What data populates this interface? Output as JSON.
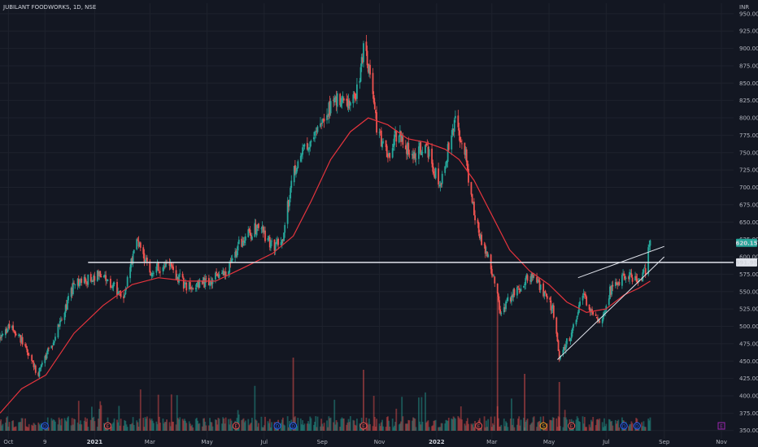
{
  "header": {
    "title": "JUBILANT FOODWORKS, 1D, NSE",
    "currency": "INR"
  },
  "colors": {
    "background": "#131722",
    "grid": "#1e222d",
    "up": "#26a69a",
    "down": "#ef5350",
    "ma": "#e5343d",
    "trendline": "#e0e3eb",
    "axis_text": "#b2b5be",
    "price_label_bg": "#26a69a",
    "level_label_bg": "#e0e3eb",
    "upper_band": "#434651"
  },
  "badges": {
    "earnings_label": "E",
    "split_label": "S",
    "dividend_label": "D",
    "earnings_color": "#ef5350",
    "split_color": "#f7a21b",
    "dividend_color": "#2962ff",
    "future_color": "#9c27b0"
  },
  "chart_data": {
    "type": "candlestick",
    "title": "JUBILANT FOODWORKS, 1D, NSE",
    "y_axis": {
      "unit": "INR",
      "range": [
        338,
        965
      ],
      "ticks": [
        "950.00",
        "925.00",
        "900.00",
        "875.00",
        "850.00",
        "825.00",
        "800.00",
        "775.00",
        "750.00",
        "725.00",
        "700.00",
        "675.00",
        "650.00",
        "625.00",
        "600.00",
        "575.00",
        "550.00",
        "525.00",
        "500.00",
        "475.00",
        "450.00",
        "425.00",
        "400.00",
        "375.00",
        "350.00"
      ]
    },
    "x_axis": {
      "range": [
        "2020-09-22",
        "2022-11-14"
      ],
      "ticks": [
        {
          "label": "Oct",
          "date": "2020-10-01",
          "bold": false
        },
        {
          "label": "9",
          "date": "2020-11-09",
          "bold": false
        },
        {
          "label": "2021",
          "date": "2021-01-01",
          "bold": true
        },
        {
          "label": "Mar",
          "date": "2021-03-01",
          "bold": false
        },
        {
          "label": "May",
          "date": "2021-05-01",
          "bold": false
        },
        {
          "label": "Jul",
          "date": "2021-07-01",
          "bold": false
        },
        {
          "label": "Sep",
          "date": "2021-09-01",
          "bold": false
        },
        {
          "label": "Nov",
          "date": "2021-11-01",
          "bold": false
        },
        {
          "label": "2022",
          "date": "2022-01-01",
          "bold": true
        },
        {
          "label": "Mar",
          "date": "2022-03-01",
          "bold": false
        },
        {
          "label": "May",
          "date": "2022-05-01",
          "bold": false
        },
        {
          "label": "Jul",
          "date": "2022-07-01",
          "bold": false
        },
        {
          "label": "Sep",
          "date": "2022-09-01",
          "bold": false
        },
        {
          "label": "Nov",
          "date": "2022-11-01",
          "bold": false
        }
      ]
    },
    "price_anchors": [
      [
        "2020-09-22",
        480
      ],
      [
        "2020-10-01",
        500
      ],
      [
        "2020-10-15",
        480
      ],
      [
        "2020-11-01",
        430
      ],
      [
        "2020-11-15",
        470
      ],
      [
        "2020-12-10",
        560
      ],
      [
        "2021-01-05",
        575
      ],
      [
        "2021-02-01",
        545
      ],
      [
        "2021-02-15",
        625
      ],
      [
        "2021-03-01",
        580
      ],
      [
        "2021-03-20",
        590
      ],
      [
        "2021-04-10",
        555
      ],
      [
        "2021-05-01",
        565
      ],
      [
        "2021-05-20",
        575
      ],
      [
        "2021-06-05",
        620
      ],
      [
        "2021-06-25",
        645
      ],
      [
        "2021-07-10",
        615
      ],
      [
        "2021-07-20",
        620
      ],
      [
        "2021-08-01",
        725
      ],
      [
        "2021-08-15",
        760
      ],
      [
        "2021-09-01",
        800
      ],
      [
        "2021-09-15",
        825
      ],
      [
        "2021-10-01",
        820
      ],
      [
        "2021-10-11",
        850
      ],
      [
        "2021-10-15",
        905
      ],
      [
        "2021-10-22",
        860
      ],
      [
        "2021-10-29",
        785
      ],
      [
        "2021-11-10",
        740
      ],
      [
        "2021-11-20",
        780
      ],
      [
        "2021-12-05",
        745
      ],
      [
        "2021-12-20",
        760
      ],
      [
        "2022-01-05",
        700
      ],
      [
        "2022-01-14",
        760
      ],
      [
        "2022-01-20",
        800
      ],
      [
        "2022-02-01",
        745
      ],
      [
        "2022-02-10",
        660
      ],
      [
        "2022-02-20",
        615
      ],
      [
        "2022-03-01",
        580
      ],
      [
        "2022-03-10",
        520
      ],
      [
        "2022-03-20",
        540
      ],
      [
        "2022-04-05",
        565
      ],
      [
        "2022-04-15",
        575
      ],
      [
        "2022-04-25",
        545
      ],
      [
        "2022-05-05",
        525
      ],
      [
        "2022-05-12",
        455
      ],
      [
        "2022-05-25",
        490
      ],
      [
        "2022-06-05",
        545
      ],
      [
        "2022-06-15",
        525
      ],
      [
        "2022-06-25",
        505
      ],
      [
        "2022-07-05",
        550
      ],
      [
        "2022-07-15",
        565
      ],
      [
        "2022-07-25",
        575
      ],
      [
        "2022-08-05",
        565
      ],
      [
        "2022-08-12",
        580
      ],
      [
        "2022-08-17",
        625
      ]
    ],
    "moving_average": {
      "points": [
        [
          "2020-09-22",
          375
        ],
        [
          "2020-10-15",
          410
        ],
        [
          "2020-11-10",
          430
        ],
        [
          "2020-12-10",
          490
        ],
        [
          "2021-01-10",
          530
        ],
        [
          "2021-02-10",
          560
        ],
        [
          "2021-03-10",
          570
        ],
        [
          "2021-04-10",
          565
        ],
        [
          "2021-05-10",
          565
        ],
        [
          "2021-06-10",
          585
        ],
        [
          "2021-07-10",
          605
        ],
        [
          "2021-08-01",
          630
        ],
        [
          "2021-08-20",
          680
        ],
        [
          "2021-09-10",
          740
        ],
        [
          "2021-10-01",
          780
        ],
        [
          "2021-10-20",
          800
        ],
        [
          "2021-11-10",
          790
        ],
        [
          "2021-12-01",
          770
        ],
        [
          "2021-12-20",
          765
        ],
        [
          "2022-01-10",
          755
        ],
        [
          "2022-01-25",
          740
        ],
        [
          "2022-02-10",
          710
        ],
        [
          "2022-03-01",
          660
        ],
        [
          "2022-03-20",
          610
        ],
        [
          "2022-04-10",
          580
        ],
        [
          "2022-05-01",
          560
        ],
        [
          "2022-05-20",
          535
        ],
        [
          "2022-06-10",
          520
        ],
        [
          "2022-07-01",
          525
        ],
        [
          "2022-07-20",
          545
        ],
        [
          "2022-08-05",
          555
        ],
        [
          "2022-08-17",
          565
        ]
      ]
    },
    "horizontal_level": {
      "value": 591.95,
      "label": "591.95",
      "from": "2020-12-25"
    },
    "last_price": {
      "value": 620.15,
      "label": "620.15"
    },
    "trendlines": [
      {
        "name": "upper",
        "from": [
          "2022-06-01",
          570
        ],
        "to": [
          "2022-09-01",
          615
        ]
      },
      {
        "name": "lower",
        "from": [
          "2022-05-10",
          452
        ],
        "to": [
          "2022-09-01",
          600
        ]
      }
    ],
    "event_badges": [
      {
        "type": "dividend",
        "date": "2020-11-09",
        "label": "D"
      },
      {
        "type": "earnings",
        "date": "2021-01-15",
        "label": "E"
      },
      {
        "type": "earnings",
        "date": "2021-06-01",
        "label": "E"
      },
      {
        "type": "dividend",
        "date": "2021-07-15",
        "label": "D"
      },
      {
        "type": "dividend",
        "date": "2021-08-01",
        "label": "D"
      },
      {
        "type": "earnings",
        "date": "2021-10-15",
        "label": "E"
      },
      {
        "type": "earnings",
        "date": "2022-02-15",
        "label": "E"
      },
      {
        "type": "split",
        "date": "2022-04-25",
        "label": "S"
      },
      {
        "type": "earnings",
        "date": "2022-05-25",
        "label": "E"
      },
      {
        "type": "dividend",
        "date": "2022-07-20",
        "label": "D"
      },
      {
        "type": "dividend",
        "date": "2022-08-03",
        "label": "D"
      },
      {
        "type": "future-earnings",
        "date": "2022-11-01",
        "label": "E"
      }
    ]
  }
}
